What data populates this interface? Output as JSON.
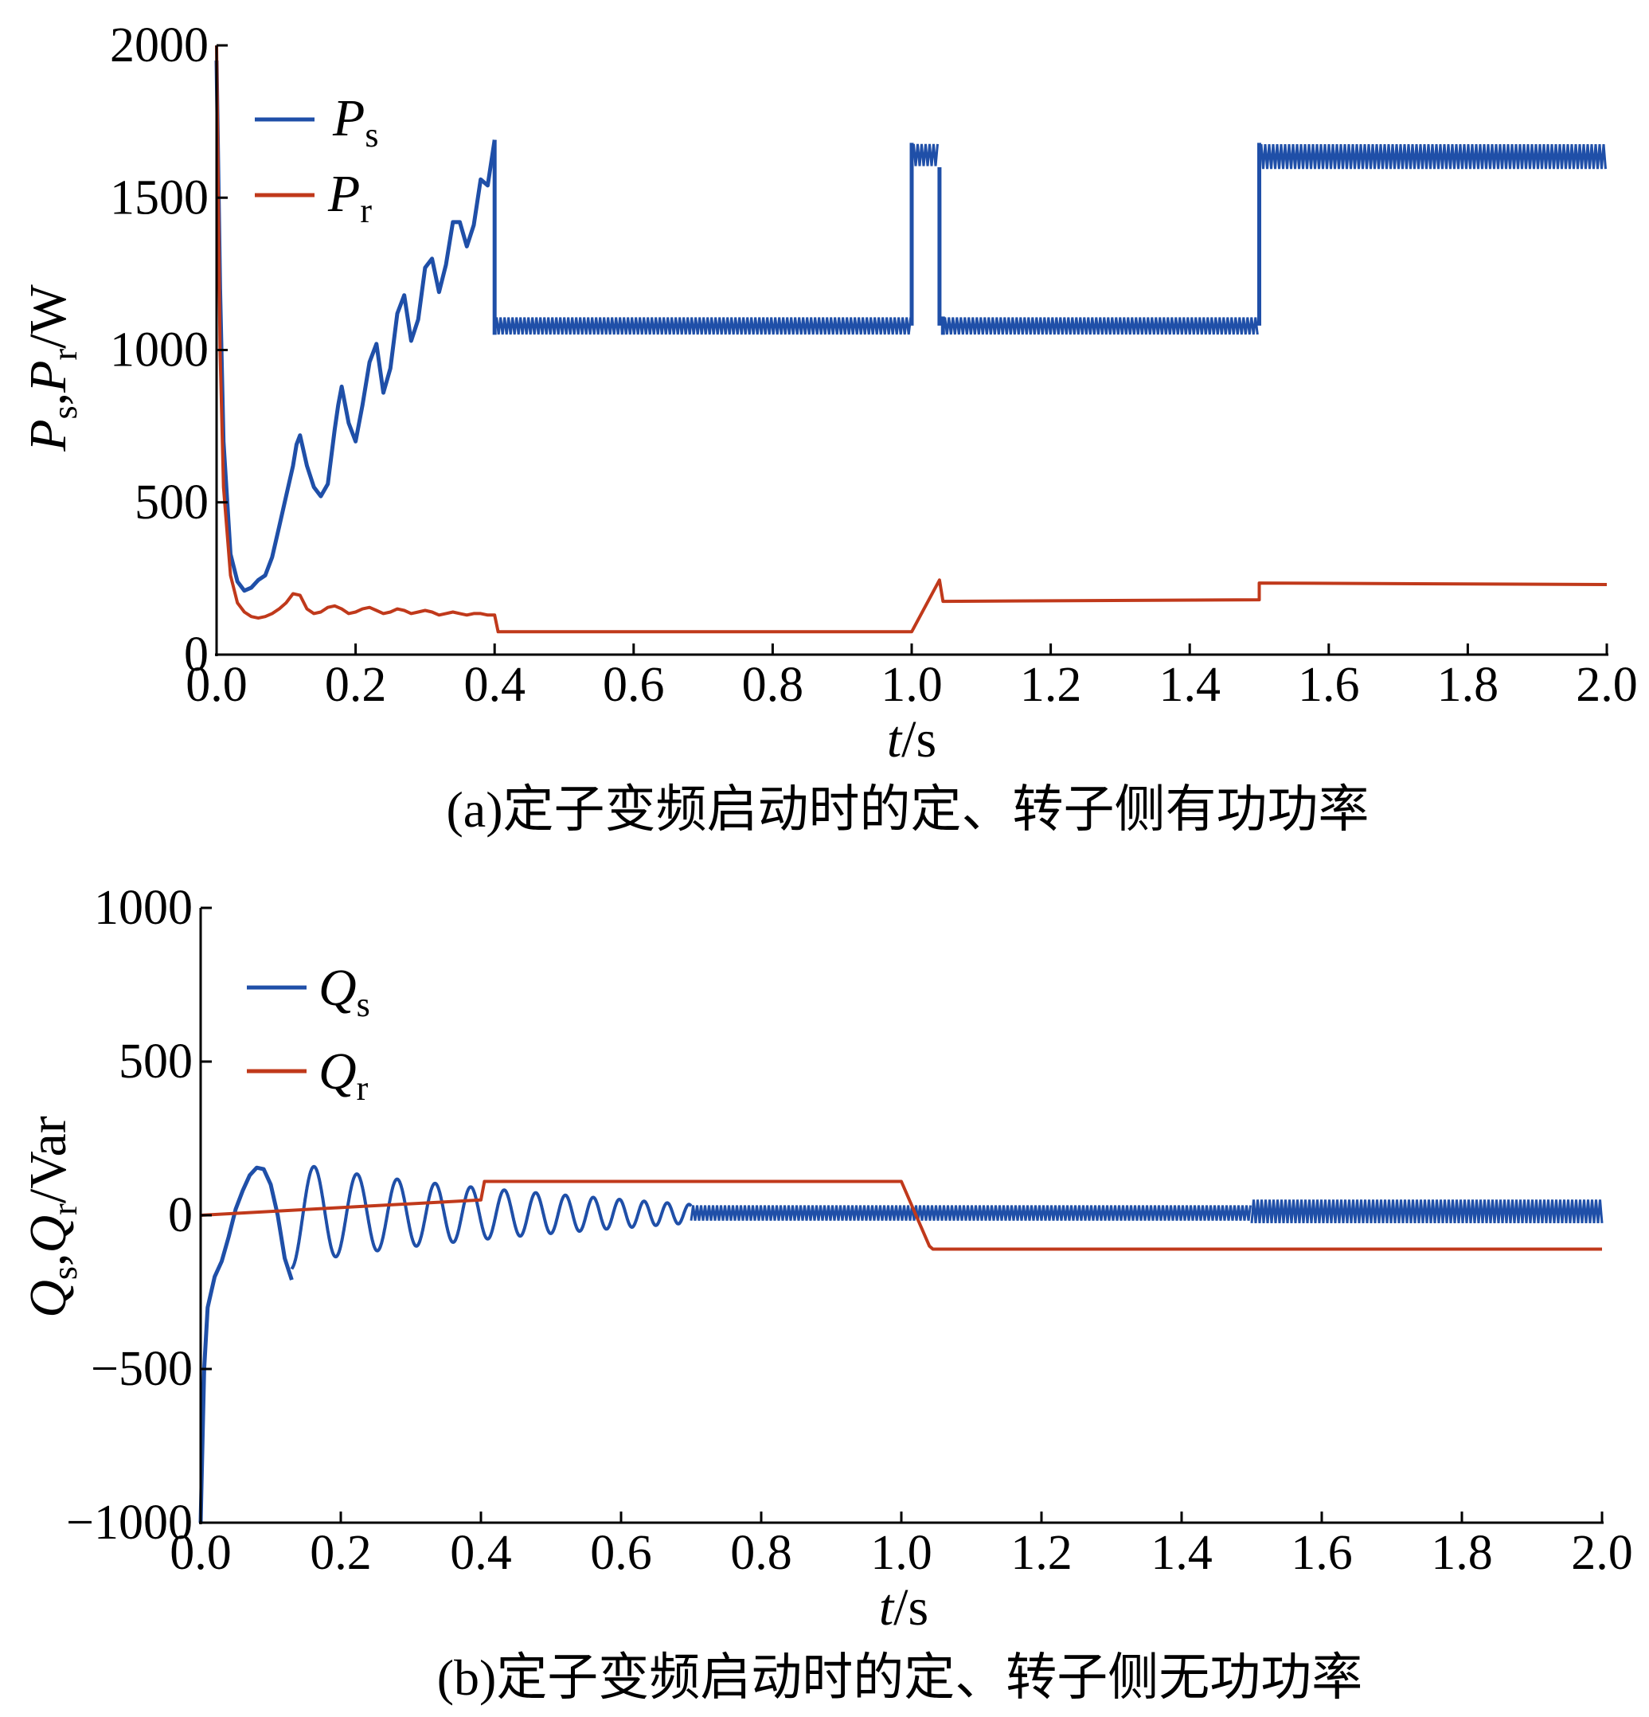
{
  "chart_data": [
    {
      "type": "line",
      "panel": "a",
      "caption": "(a)定子变频启动时的定、转子侧有功功率",
      "ylabel": {
        "main": "P",
        "sub1": "s",
        "sep": ",",
        "main2": "P",
        "sub2": "r",
        "unit": "/W"
      },
      "xlabel": {
        "main": "t",
        "unit": "/s"
      },
      "xlim": [
        0,
        2.0
      ],
      "ylim": [
        0,
        2000
      ],
      "xticks": [
        "0.0",
        "0.2",
        "0.4",
        "0.6",
        "0.8",
        "1.0",
        "1.2",
        "1.4",
        "1.6",
        "1.8",
        "2.0"
      ],
      "yticks": [
        "0",
        "500",
        "1000",
        "1500",
        "2000"
      ],
      "legend_position": "top-left",
      "series": [
        {
          "name": "P",
          "sub": "s",
          "color": "#1f4fa8",
          "segments": [
            {
              "x": [
                0.0,
                0.005,
                0.01,
                0.02,
                0.03,
                0.04,
                0.05,
                0.06,
                0.07,
                0.08,
                0.09,
                0.1,
                0.11,
                0.115,
                0.12,
                0.13,
                0.14,
                0.15,
                0.16,
                0.17,
                0.175,
                0.18,
                0.19,
                0.2,
                0.21,
                0.22,
                0.23,
                0.24,
                0.25,
                0.26,
                0.27,
                0.28,
                0.29,
                0.3,
                0.31,
                0.32,
                0.33,
                0.34,
                0.35,
                0.36,
                0.37,
                0.38,
                0.39,
                0.4
              ],
              "y": [
                1950,
                1200,
                700,
                330,
                240,
                210,
                220,
                245,
                260,
                320,
                420,
                520,
                620,
                690,
                720,
                620,
                550,
                520,
                560,
                740,
                820,
                880,
                760,
                700,
                820,
                960,
                1020,
                860,
                940,
                1120,
                1180,
                1030,
                1100,
                1270,
                1300,
                1190,
                1280,
                1420,
                1420,
                1340,
                1410,
                1560,
                1540,
                1690
              ]
            },
            {
              "x": [
                0.4,
                2.0
              ],
              "ylow": [
                1050,
                1050
              ],
              "yhigh": [
                1100,
                1100
              ],
              "band": true,
              "x0": 0.4,
              "x1": 1.0,
              "lo": 1048,
              "hi": 1110
            },
            {
              "band": true,
              "x0": 1.0,
              "x1": 1.04,
              "lo": 1600,
              "hi": 1680
            },
            {
              "band": true,
              "x0": 1.045,
              "x1": 1.5,
              "lo": 1048,
              "hi": 1110
            },
            {
              "band": true,
              "x0": 1.5,
              "x1": 2.0,
              "lo": 1590,
              "hi": 1680
            }
          ]
        },
        {
          "name": "P",
          "sub": "r",
          "color": "#c0391b",
          "x": [
            0.0,
            0.005,
            0.01,
            0.02,
            0.03,
            0.04,
            0.05,
            0.06,
            0.07,
            0.08,
            0.09,
            0.1,
            0.11,
            0.12,
            0.13,
            0.14,
            0.15,
            0.16,
            0.17,
            0.18,
            0.19,
            0.2,
            0.21,
            0.22,
            0.23,
            0.24,
            0.25,
            0.26,
            0.27,
            0.28,
            0.29,
            0.3,
            0.31,
            0.32,
            0.33,
            0.34,
            0.35,
            0.36,
            0.37,
            0.38,
            0.39,
            0.4,
            0.405,
            1.0,
            1.04,
            1.045,
            1.5,
            1.5,
            2.0
          ],
          "y": [
            2000,
            1000,
            550,
            260,
            170,
            140,
            125,
            120,
            125,
            135,
            150,
            170,
            200,
            195,
            150,
            135,
            140,
            155,
            160,
            150,
            135,
            140,
            150,
            155,
            145,
            135,
            140,
            150,
            145,
            135,
            140,
            145,
            140,
            130,
            135,
            140,
            135,
            130,
            135,
            135,
            130,
            130,
            75,
            75,
            245,
            175,
            180,
            235,
            230
          ]
        }
      ]
    },
    {
      "type": "line",
      "panel": "b",
      "caption": "(b)定子变频启动时的定、转子侧无功功率",
      "ylabel": {
        "main": "Q",
        "sub1": "s",
        "sep": ",",
        "main2": "Q",
        "sub2": "r",
        "unit": "/Var"
      },
      "xlabel": {
        "main": "t",
        "unit": "/s"
      },
      "xlim": [
        0,
        2.0
      ],
      "ylim": [
        -1000,
        1000
      ],
      "xticks": [
        "0.0",
        "0.2",
        "0.4",
        "0.6",
        "0.8",
        "1.0",
        "1.2",
        "1.4",
        "1.6",
        "1.8",
        "2.0"
      ],
      "yticks": [
        "−1000",
        "−500",
        "0",
        "500",
        "1000"
      ],
      "legend_position": "top-left",
      "series": [
        {
          "name": "Q",
          "sub": "s",
          "color": "#1f4fa8",
          "segments": [
            {
              "x": [
                0.0,
                0.005,
                0.01,
                0.02,
                0.03,
                0.04,
                0.05,
                0.06,
                0.07,
                0.08,
                0.09,
                0.1,
                0.11,
                0.12,
                0.13
              ],
              "y": [
                -1000,
                -500,
                -300,
                -200,
                -150,
                -70,
                20,
                80,
                130,
                155,
                150,
                100,
                0,
                -140,
                -210
              ]
            },
            {
              "osc": true,
              "x0": 0.13,
              "x1": 0.7,
              "period_start": 0.065,
              "period_end": 0.03,
              "amp_start": 180,
              "amp_end": 30
            },
            {
              "band": true,
              "x0": 0.7,
              "x1": 1.5,
              "lo": -20,
              "hi": 35
            },
            {
              "band": true,
              "x0": 1.5,
              "x1": 2.0,
              "lo": -30,
              "hi": 55
            }
          ]
        },
        {
          "name": "Q",
          "sub": "r",
          "color": "#c0391b",
          "x": [
            0.0,
            0.4,
            0.405,
            1.0,
            1.04,
            1.045,
            2.0
          ],
          "y": [
            0,
            50,
            110,
            110,
            -100,
            -110,
            -110
          ]
        }
      ]
    }
  ]
}
